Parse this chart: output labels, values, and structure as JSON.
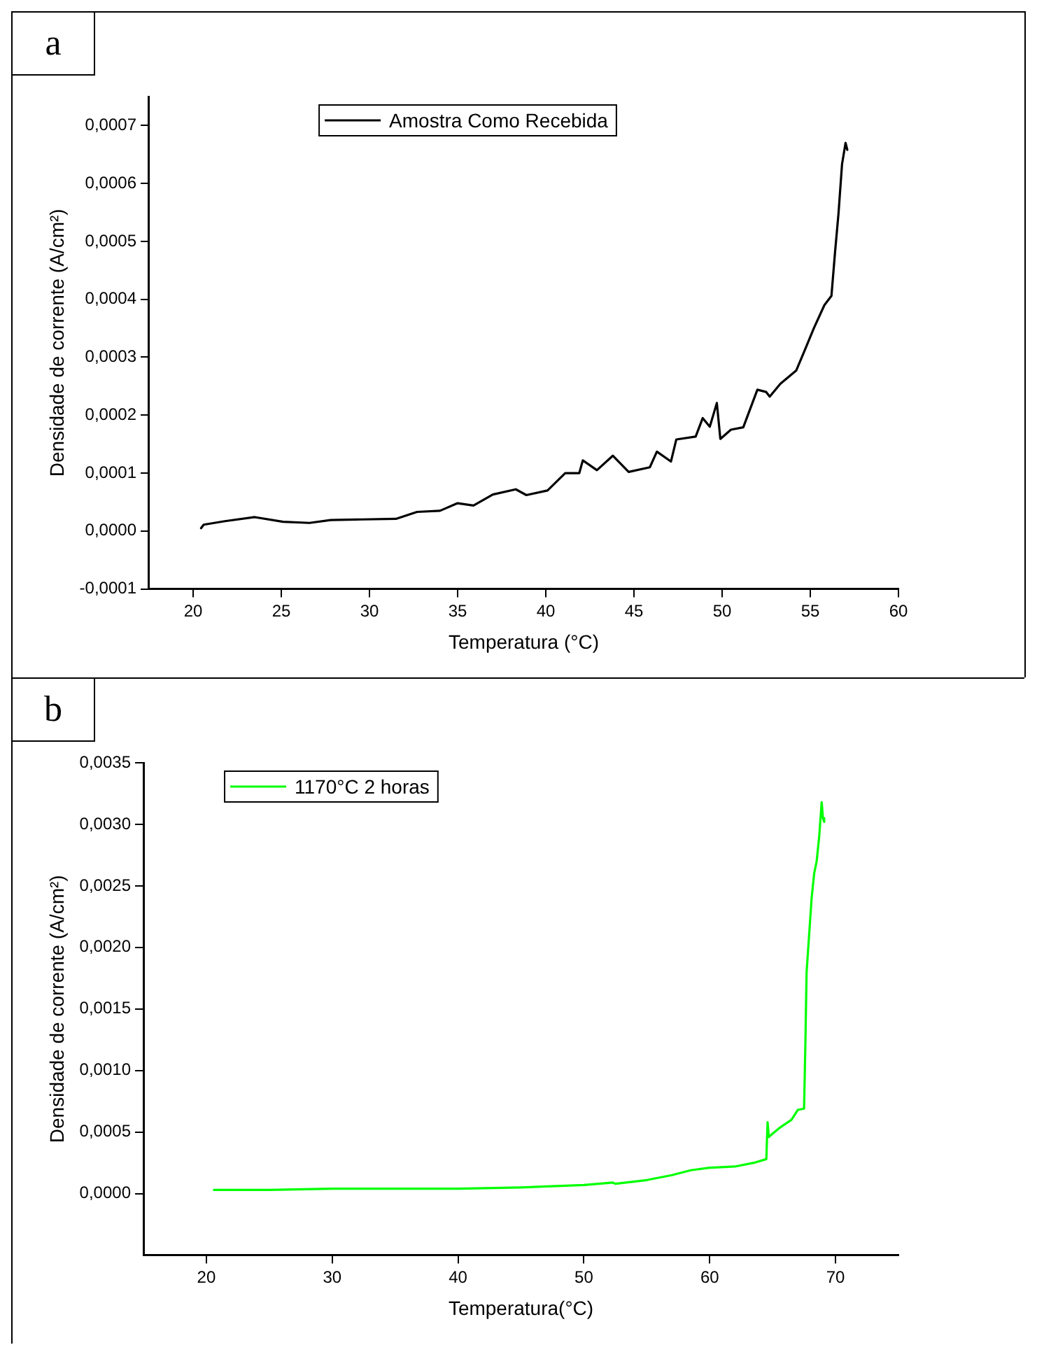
{
  "chart_data": [
    {
      "type": "line",
      "annotations": [
        "a"
      ],
      "xlabel": "Temperatura (°C)",
      "ylabel": "Densidade de corrente (A/cm²)",
      "legend": "top",
      "grid": false,
      "marker": "none",
      "line_style": "solid",
      "xlim": [
        17.5,
        60
      ],
      "xticks": [
        20,
        25,
        30,
        35,
        40,
        45,
        50,
        55,
        60
      ],
      "ylim": [
        -0.0001,
        0.00075
      ],
      "yticks": [
        {
          "value": -0.0001,
          "label": "-0,0001"
        },
        {
          "value": 0,
          "label": "0,0000"
        },
        {
          "value": 0.0001,
          "label": "0,0001"
        },
        {
          "value": 0.0002,
          "label": "0,0002"
        },
        {
          "value": 0.0003,
          "label": "0,0003"
        },
        {
          "value": 0.0004,
          "label": "0,0004"
        },
        {
          "value": 0.0005,
          "label": "0,0005"
        },
        {
          "value": 0.0006,
          "label": "0,0006"
        },
        {
          "value": 0.0007,
          "label": "0,0007"
        }
      ],
      "series": [
        {
          "name": "Amostra Como Recebida",
          "color": "#000000",
          "x": [
            20.45,
            20.6,
            21.8,
            23.5,
            25.1,
            26.6,
            27.8,
            29.6,
            31.5,
            32.7,
            34.0,
            35.0,
            35.9,
            37.0,
            38.3,
            38.9,
            40.1,
            41.1,
            41.9,
            42.1,
            42.9,
            43.8,
            44.7,
            45.9,
            46.3,
            47.1,
            47.4,
            48.5,
            48.9,
            49.3,
            49.7,
            49.9,
            50.5,
            51.2,
            52.0,
            52.5,
            52.7,
            53.3,
            54.2,
            54.7,
            55.2,
            55.8,
            56.2,
            56.4,
            56.6,
            56.8,
            57.0,
            57.1
          ],
          "values": [
            5e-06,
            1.1e-05,
            1.7e-05,
            2.4e-05,
            1.6e-05,
            1.4e-05,
            1.9e-05,
            2e-05,
            2.1e-05,
            3.3e-05,
            3.5e-05,
            4.8e-05,
            4.4e-05,
            6.3e-05,
            7.2e-05,
            6.2e-05,
            7e-05,
            0.0001,
            0.0001,
            0.000122,
            0.000105,
            0.00013,
            0.000102,
            0.00011,
            0.000137,
            0.00012,
            0.000158,
            0.000163,
            0.000195,
            0.00018,
            0.000221,
            0.000159,
            0.000175,
            0.000179,
            0.000244,
            0.00024,
            0.000232,
            0.000254,
            0.000277,
            0.000313,
            0.00035,
            0.00039,
            0.000406,
            0.00048,
            0.000548,
            0.000633,
            0.00067,
            0.000658
          ]
        }
      ]
    },
    {
      "type": "line",
      "annotations": [
        "b"
      ],
      "xlabel": "Temperatura(°C)",
      "ylabel": "Densidade de corrente (A/cm²)",
      "legend": "top left",
      "grid": false,
      "marker": "none",
      "line_style": "solid",
      "xlim": [
        15,
        75
      ],
      "xticks": [
        20,
        30,
        40,
        50,
        60,
        70
      ],
      "ylim": [
        -0.0005,
        0.0035
      ],
      "yticks": [
        {
          "value": 0,
          "label": "0,0000"
        },
        {
          "value": 0.0005,
          "label": "0,0005"
        },
        {
          "value": 0.001,
          "label": "0,0010"
        },
        {
          "value": 0.0015,
          "label": "0,0015"
        },
        {
          "value": 0.002,
          "label": "0,0020"
        },
        {
          "value": 0.0025,
          "label": "0,0025"
        },
        {
          "value": 0.003,
          "label": "0,0030"
        },
        {
          "value": 0.0035,
          "label": "0,0035"
        }
      ],
      "series": [
        {
          "name": "1170°C 2 horas",
          "color": "#00ff00",
          "x": [
            20.6,
            25,
            30,
            35,
            40,
            45,
            50,
            52.3,
            52.5,
            55,
            57,
            58.5,
            60,
            62,
            63.5,
            64.5,
            64.6,
            64.7,
            64.8,
            65.5,
            66.5,
            67.0,
            67.5,
            67.6,
            67.7,
            67.9,
            68.1,
            68.3,
            68.5,
            68.7,
            68.9,
            69.0,
            69.1
          ],
          "values": [
            3e-05,
            3e-05,
            4e-05,
            4e-05,
            4e-05,
            5e-05,
            7e-05,
            9e-05,
            8e-05,
            0.00011,
            0.00015,
            0.00019,
            0.00021,
            0.00022,
            0.00025,
            0.00028,
            0.00058,
            0.00046,
            0.00047,
            0.00053,
            0.0006,
            0.00068,
            0.00069,
            0.0012,
            0.0018,
            0.0021,
            0.0024,
            0.0026,
            0.0027,
            0.0029,
            0.00318,
            0.00305,
            0.00302
          ]
        }
      ]
    }
  ]
}
